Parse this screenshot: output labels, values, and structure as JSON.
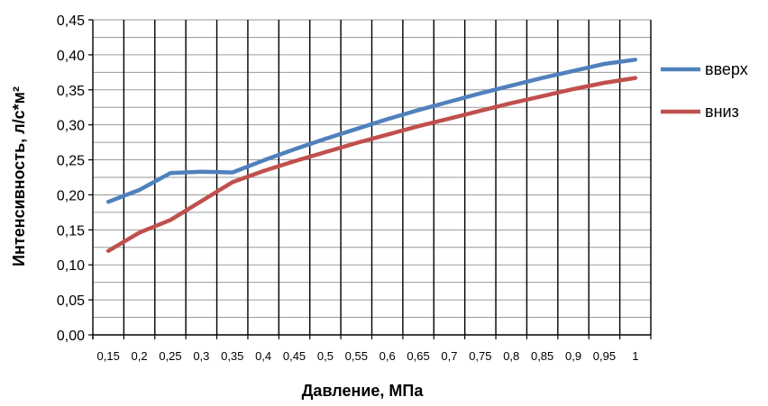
{
  "chart_data": {
    "type": "line",
    "title": "",
    "xlabel": "Давление, МПа",
    "ylabel": "Интенсивность, л/с*м²",
    "categories": [
      "0,15",
      "0,2",
      "0,25",
      "0,3",
      "0,35",
      "0,4",
      "0,45",
      "0,5",
      "0,55",
      "0,6",
      "0,65",
      "0,7",
      "0,75",
      "0,8",
      "0,85",
      "0,9",
      "0,95",
      "1"
    ],
    "y_ticks": [
      "0,00",
      "0,05",
      "0,10",
      "0,15",
      "0,20",
      "0,25",
      "0,30",
      "0,35",
      "0,40",
      "0,45"
    ],
    "ylim": [
      0,
      0.45
    ],
    "grid": true,
    "legend_position": "right",
    "series": [
      {
        "name": "вверх",
        "color": "#4F81BD",
        "values": [
          0.19,
          0.207,
          0.231,
          0.233,
          0.232,
          0.249,
          0.265,
          0.28,
          0.294,
          0.308,
          0.321,
          0.333,
          0.345,
          0.356,
          0.367,
          0.377,
          0.387,
          0.393
        ]
      },
      {
        "name": "вниз",
        "color": "#C0504D",
        "values": [
          0.12,
          0.146,
          0.164,
          0.191,
          0.218,
          0.234,
          0.248,
          0.261,
          0.274,
          0.286,
          0.298,
          0.309,
          0.32,
          0.331,
          0.341,
          0.351,
          0.36,
          0.367
        ]
      }
    ]
  }
}
